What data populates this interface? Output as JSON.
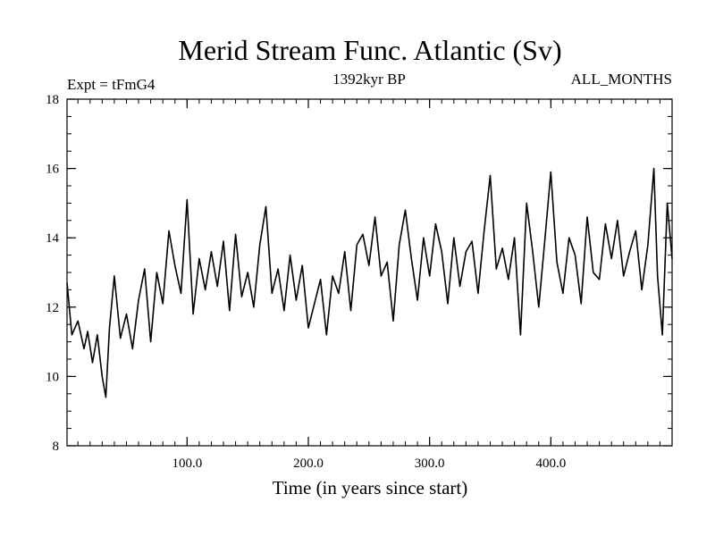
{
  "chart_data": {
    "type": "line",
    "title": "Merid Stream Func. Atlantic (Sv)",
    "subtitle_left": "Expt = tFmG4",
    "subtitle_center": "1392kyr BP",
    "subtitle_right": "ALL_MONTHS",
    "xlabel": "Time (in years since start)",
    "ylabel": "",
    "xlim": [
      1,
      500
    ],
    "ylim": [
      8,
      18
    ],
    "x_tick_labels": [
      "100.0",
      "200.0",
      "300.0",
      "400.0"
    ],
    "x_tick_values": [
      100,
      200,
      300,
      400
    ],
    "y_tick_labels": [
      "8",
      "10",
      "12",
      "14",
      "16",
      "18"
    ],
    "y_tick_values": [
      8,
      10,
      12,
      14,
      16,
      18
    ],
    "series": [
      {
        "name": "tFmG4",
        "color": "#000000",
        "x": [
          1,
          5,
          10,
          15,
          18,
          22,
          26,
          30,
          33,
          36,
          40,
          45,
          50,
          55,
          60,
          65,
          70,
          75,
          80,
          85,
          90,
          95,
          100,
          105,
          110,
          115,
          120,
          125,
          130,
          135,
          140,
          145,
          150,
          155,
          160,
          165,
          170,
          175,
          180,
          185,
          190,
          195,
          200,
          205,
          210,
          215,
          220,
          225,
          230,
          235,
          240,
          245,
          250,
          255,
          260,
          265,
          270,
          275,
          280,
          285,
          290,
          295,
          300,
          305,
          310,
          315,
          320,
          325,
          330,
          335,
          340,
          345,
          350,
          355,
          360,
          365,
          370,
          375,
          380,
          385,
          390,
          395,
          400,
          405,
          410,
          415,
          420,
          425,
          430,
          435,
          440,
          445,
          450,
          455,
          460,
          465,
          470,
          475,
          480,
          485,
          488,
          492,
          496,
          500
        ],
        "values": [
          12.7,
          11.2,
          11.6,
          10.8,
          11.3,
          10.4,
          11.2,
          10.0,
          9.4,
          11.4,
          12.9,
          11.1,
          11.8,
          10.8,
          12.2,
          13.1,
          11.0,
          13.0,
          12.1,
          14.2,
          13.2,
          12.4,
          15.1,
          11.8,
          13.4,
          12.5,
          13.6,
          12.6,
          13.9,
          11.9,
          14.1,
          12.3,
          13.0,
          12.0,
          13.8,
          14.9,
          12.4,
          13.1,
          11.9,
          13.5,
          12.2,
          13.2,
          11.4,
          12.1,
          12.8,
          11.2,
          12.9,
          12.4,
          13.6,
          11.9,
          13.8,
          14.1,
          13.2,
          14.6,
          12.9,
          13.3,
          11.6,
          13.8,
          14.8,
          13.4,
          12.2,
          14.0,
          12.9,
          14.4,
          13.6,
          12.1,
          14.0,
          12.6,
          13.6,
          13.9,
          12.4,
          14.2,
          15.8,
          13.1,
          13.7,
          12.8,
          14.0,
          11.2,
          15.0,
          13.6,
          12.0,
          13.9,
          15.9,
          13.3,
          12.4,
          14.0,
          13.5,
          12.1,
          14.6,
          13.0,
          12.8,
          14.4,
          13.4,
          14.5,
          12.9,
          13.6,
          14.2,
          12.5,
          13.8,
          16.0,
          12.9,
          11.2,
          15.0,
          13.4
        ]
      }
    ]
  }
}
